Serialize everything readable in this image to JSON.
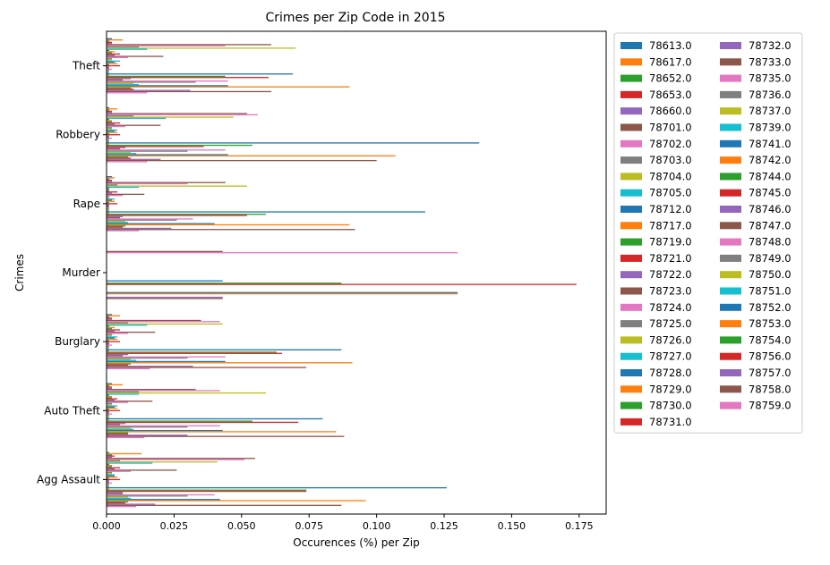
{
  "chart_data": {
    "type": "bar",
    "orientation": "horizontal",
    "title": "Crimes per Zip Code in 2015",
    "xlabel": "Occurences (%) per Zip",
    "ylabel": "Crimes",
    "xlim": [
      0,
      0.185
    ],
    "xticks": [
      "0.000",
      "0.025",
      "0.050",
      "0.075",
      "0.100",
      "0.125",
      "0.150",
      "0.175"
    ],
    "categories": [
      "Agg Assault",
      "Auto Theft",
      "Burglary",
      "Murder",
      "Rape",
      "Robbery",
      "Theft"
    ],
    "legend_position": "outside-right",
    "legend_columns": 2,
    "series": [
      {
        "name": "78613.0",
        "color": "#1f77b4",
        "values": [
          0.001,
          0.002,
          0.002,
          0.0,
          0.002,
          0.001,
          0.002
        ]
      },
      {
        "name": "78617.0",
        "color": "#ff7f0e",
        "values": [
          0.013,
          0.006,
          0.005,
          0.0,
          0.003,
          0.004,
          0.006
        ]
      },
      {
        "name": "78652.0",
        "color": "#2ca02c",
        "values": [
          0.002,
          0.001,
          0.001,
          0.0,
          0.001,
          0.001,
          0.001
        ]
      },
      {
        "name": "78653.0",
        "color": "#d62728",
        "values": [
          0.003,
          0.002,
          0.002,
          0.0,
          0.002,
          0.002,
          0.002
        ]
      },
      {
        "name": "78660.0",
        "color": "#9467bd",
        "values": [
          0.002,
          0.002,
          0.002,
          0.0,
          0.002,
          0.002,
          0.002
        ]
      },
      {
        "name": "78701.0",
        "color": "#8c564b",
        "values": [
          0.055,
          0.033,
          0.035,
          0.043,
          0.044,
          0.052,
          0.061
        ]
      },
      {
        "name": "78702.0",
        "color": "#e377c2",
        "values": [
          0.051,
          0.042,
          0.042,
          0.13,
          0.03,
          0.056,
          0.044
        ]
      },
      {
        "name": "78703.0",
        "color": "#7f7f7f",
        "values": [
          0.005,
          0.012,
          0.008,
          0.0,
          0.004,
          0.01,
          0.012
        ]
      },
      {
        "name": "78704.0",
        "color": "#bcbd22",
        "values": [
          0.041,
          0.059,
          0.043,
          0.0,
          0.052,
          0.047,
          0.07
        ]
      },
      {
        "name": "78705.0",
        "color": "#17becf",
        "values": [
          0.017,
          0.012,
          0.015,
          0.0,
          0.012,
          0.022,
          0.015
        ]
      },
      {
        "name": "78712.0",
        "color": "#1f77b4",
        "values": [
          0.001,
          0.001,
          0.001,
          0.0,
          0.001,
          0.001,
          0.001
        ]
      },
      {
        "name": "78717.0",
        "color": "#ff7f0e",
        "values": [
          0.002,
          0.002,
          0.003,
          0.0,
          0.001,
          0.002,
          0.003
        ]
      },
      {
        "name": "78719.0",
        "color": "#2ca02c",
        "values": [
          0.002,
          0.002,
          0.002,
          0.0,
          0.001,
          0.002,
          0.002
        ]
      },
      {
        "name": "78721.0",
        "color": "#d62728",
        "values": [
          0.005,
          0.004,
          0.005,
          0.0,
          0.004,
          0.005,
          0.005
        ]
      },
      {
        "name": "78722.0",
        "color": "#9467bd",
        "values": [
          0.003,
          0.003,
          0.003,
          0.0,
          0.002,
          0.003,
          0.003
        ]
      },
      {
        "name": "78723.0",
        "color": "#8c564b",
        "values": [
          0.026,
          0.017,
          0.018,
          0.0,
          0.014,
          0.02,
          0.021
        ]
      },
      {
        "name": "78724.0",
        "color": "#e377c2",
        "values": [
          0.009,
          0.008,
          0.008,
          0.0,
          0.006,
          0.007,
          0.008
        ]
      },
      {
        "name": "78725.0",
        "color": "#7f7f7f",
        "values": [
          0.002,
          0.002,
          0.002,
          0.0,
          0.001,
          0.002,
          0.002
        ]
      },
      {
        "name": "78726.0",
        "color": "#bcbd22",
        "values": [
          0.002,
          0.002,
          0.002,
          0.0,
          0.001,
          0.002,
          0.002
        ]
      },
      {
        "name": "78727.0",
        "color": "#17becf",
        "values": [
          0.003,
          0.004,
          0.004,
          0.0,
          0.003,
          0.004,
          0.005
        ]
      },
      {
        "name": "78728.0",
        "color": "#1f77b4",
        "values": [
          0.003,
          0.003,
          0.003,
          0.0,
          0.002,
          0.003,
          0.003
        ]
      },
      {
        "name": "78729.0",
        "color": "#ff7f0e",
        "values": [
          0.004,
          0.004,
          0.004,
          0.0,
          0.003,
          0.004,
          0.004
        ]
      },
      {
        "name": "78730.0",
        "color": "#2ca02c",
        "values": [
          0.001,
          0.001,
          0.001,
          0.0,
          0.001,
          0.001,
          0.001
        ]
      },
      {
        "name": "78731.0",
        "color": "#d62728",
        "values": [
          0.005,
          0.005,
          0.005,
          0.0,
          0.004,
          0.005,
          0.005
        ]
      },
      {
        "name": "78732.0",
        "color": "#9467bd",
        "values": [
          0.001,
          0.001,
          0.001,
          0.0,
          0.001,
          0.001,
          0.001
        ]
      },
      {
        "name": "78733.0",
        "color": "#8c564b",
        "values": [
          0.001,
          0.001,
          0.001,
          0.0,
          0.001,
          0.001,
          0.001
        ]
      },
      {
        "name": "78735.0",
        "color": "#e377c2",
        "values": [
          0.002,
          0.002,
          0.002,
          0.0,
          0.001,
          0.002,
          0.002
        ]
      },
      {
        "name": "78736.0",
        "color": "#7f7f7f",
        "values": [
          0.001,
          0.001,
          0.001,
          0.0,
          0.001,
          0.001,
          0.001
        ]
      },
      {
        "name": "78737.0",
        "color": "#bcbd22",
        "values": [
          0.001,
          0.001,
          0.001,
          0.0,
          0.001,
          0.001,
          0.001
        ]
      },
      {
        "name": "78739.0",
        "color": "#17becf",
        "values": [
          0.001,
          0.001,
          0.001,
          0.0,
          0.001,
          0.001,
          0.001
        ]
      },
      {
        "name": "78741.0",
        "color": "#1f77b4",
        "values": [
          0.126,
          0.08,
          0.087,
          0.043,
          0.118,
          0.138,
          0.069
        ]
      },
      {
        "name": "78742.0",
        "color": "#ff7f0e",
        "values": [
          0.001,
          0.001,
          0.001,
          0.0,
          0.001,
          0.001,
          0.001
        ]
      },
      {
        "name": "78744.0",
        "color": "#2ca02c",
        "values": [
          0.074,
          0.054,
          0.063,
          0.087,
          0.059,
          0.054,
          0.044
        ]
      },
      {
        "name": "78745.0",
        "color": "#d62728",
        "values": [
          0.074,
          0.071,
          0.065,
          0.174,
          0.052,
          0.036,
          0.06
        ]
      },
      {
        "name": "78746.0",
        "color": "#9467bd",
        "values": [
          0.006,
          0.007,
          0.008,
          0.0,
          0.006,
          0.007,
          0.009
        ]
      },
      {
        "name": "78747.0",
        "color": "#8c564b",
        "values": [
          0.006,
          0.005,
          0.006,
          0.0,
          0.005,
          0.005,
          0.006
        ]
      },
      {
        "name": "78748.0",
        "color": "#e377c2",
        "values": [
          0.04,
          0.042,
          0.044,
          0.0,
          0.032,
          0.044,
          0.045
        ]
      },
      {
        "name": "78749.0",
        "color": "#7f7f7f",
        "values": [
          0.03,
          0.03,
          0.03,
          0.0,
          0.026,
          0.03,
          0.033
        ]
      },
      {
        "name": "78750.0",
        "color": "#bcbd22",
        "values": [
          0.008,
          0.009,
          0.009,
          0.0,
          0.007,
          0.009,
          0.01
        ]
      },
      {
        "name": "78751.0",
        "color": "#17becf",
        "values": [
          0.009,
          0.01,
          0.011,
          0.0,
          0.008,
          0.011,
          0.012
        ]
      },
      {
        "name": "78752.0",
        "color": "#1f77b4",
        "values": [
          0.042,
          0.043,
          0.044,
          0.13,
          0.04,
          0.045,
          0.045
        ]
      },
      {
        "name": "78753.0",
        "color": "#ff7f0e",
        "values": [
          0.096,
          0.085,
          0.091,
          0.13,
          0.09,
          0.107,
          0.09
        ]
      },
      {
        "name": "78754.0",
        "color": "#2ca02c",
        "values": [
          0.008,
          0.008,
          0.009,
          0.0,
          0.007,
          0.008,
          0.009
        ]
      },
      {
        "name": "78756.0",
        "color": "#d62728",
        "values": [
          0.007,
          0.008,
          0.008,
          0.0,
          0.006,
          0.009,
          0.01
        ]
      },
      {
        "name": "78757.0",
        "color": "#9467bd",
        "values": [
          0.018,
          0.03,
          0.032,
          0.043,
          0.024,
          0.02,
          0.031
        ]
      },
      {
        "name": "78758.0",
        "color": "#8c564b",
        "values": [
          0.087,
          0.088,
          0.074,
          0.043,
          0.092,
          0.1,
          0.061
        ]
      },
      {
        "name": "78759.0",
        "color": "#e377c2",
        "values": [
          0.011,
          0.014,
          0.016,
          0.0,
          0.012,
          0.015,
          0.015
        ]
      }
    ]
  }
}
